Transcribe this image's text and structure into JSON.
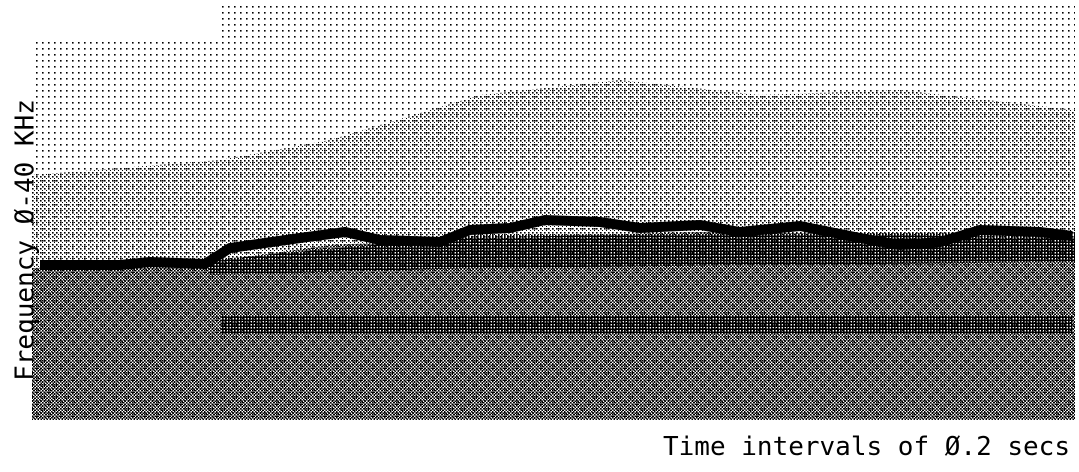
{
  "y_axis_label": "Frequency Ø-40 KHz",
  "x_axis_label": "Time intervals of Ø.2 secs"
}
